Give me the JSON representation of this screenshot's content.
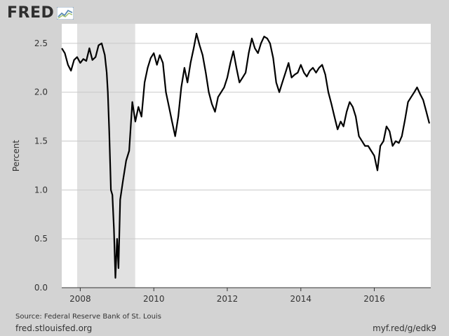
{
  "branding": {
    "logo_text": "FRED",
    "logo_icon": "fred-chart-icon"
  },
  "chart_data": {
    "type": "line",
    "ylabel": "Percent",
    "xlabel": "",
    "ylim": [
      0.0,
      2.7
    ],
    "xlim": [
      "2007-07-01",
      "2017-07-15"
    ],
    "yticks": [
      0.0,
      0.5,
      1.0,
      1.5,
      2.0,
      2.5
    ],
    "ytick_labels": [
      "0.0",
      "0.5",
      "1.0",
      "1.5",
      "2.0",
      "2.5"
    ],
    "xticks": [
      "2008-01-01",
      "2010-01-01",
      "2012-01-01",
      "2014-01-01",
      "2016-01-01"
    ],
    "xtick_labels": [
      "2008",
      "2010",
      "2012",
      "2014",
      "2016"
    ],
    "grid": true,
    "recession_shading": [
      {
        "start": "2007-12-01",
        "end": "2009-06-30"
      }
    ],
    "colors": {
      "line": "#000000",
      "recession": "#e1e1e1",
      "plot_bg": "#ffffff",
      "grid": "#c9c9c9"
    },
    "series": [
      {
        "x": [
          "2007-07-02",
          "2007-08-01",
          "2007-09-01",
          "2007-10-01",
          "2007-11-01",
          "2007-12-01",
          "2008-01-01",
          "2008-02-01",
          "2008-03-01",
          "2008-04-01",
          "2008-05-01",
          "2008-06-01",
          "2008-07-01",
          "2008-08-01",
          "2008-09-01",
          "2008-09-20",
          "2008-10-01",
          "2008-10-15",
          "2008-11-01",
          "2008-11-15",
          "2008-12-01",
          "2008-12-15",
          "2009-01-01",
          "2009-01-15",
          "2009-02-01",
          "2009-03-01",
          "2009-04-01",
          "2009-05-01",
          "2009-06-01",
          "2009-07-01",
          "2009-08-01",
          "2009-09-01",
          "2009-10-01",
          "2009-11-01",
          "2009-12-01",
          "2010-01-01",
          "2010-02-01",
          "2010-03-01",
          "2010-04-01",
          "2010-05-01",
          "2010-06-01",
          "2010-07-01",
          "2010-08-01",
          "2010-09-01",
          "2010-10-01",
          "2010-11-01",
          "2010-12-01",
          "2011-01-01",
          "2011-02-01",
          "2011-03-01",
          "2011-04-01",
          "2011-05-01",
          "2011-06-01",
          "2011-07-01",
          "2011-08-01",
          "2011-09-01",
          "2011-10-01",
          "2011-11-01",
          "2011-12-01",
          "2012-01-01",
          "2012-02-01",
          "2012-03-01",
          "2012-04-01",
          "2012-05-01",
          "2012-06-01",
          "2012-07-01",
          "2012-08-01",
          "2012-09-01",
          "2012-10-01",
          "2012-11-01",
          "2012-12-01",
          "2013-01-01",
          "2013-02-01",
          "2013-03-01",
          "2013-04-01",
          "2013-05-01",
          "2013-06-01",
          "2013-07-01",
          "2013-08-01",
          "2013-09-01",
          "2013-10-01",
          "2013-11-01",
          "2013-12-01",
          "2014-01-01",
          "2014-02-01",
          "2014-03-01",
          "2014-04-01",
          "2014-05-01",
          "2014-06-01",
          "2014-07-01",
          "2014-08-01",
          "2014-09-01",
          "2014-10-01",
          "2014-11-01",
          "2014-12-01",
          "2015-01-01",
          "2015-02-01",
          "2015-03-01",
          "2015-04-01",
          "2015-05-01",
          "2015-06-01",
          "2015-07-01",
          "2015-08-01",
          "2015-09-01",
          "2015-10-01",
          "2015-11-01",
          "2015-12-01",
          "2016-01-01",
          "2016-02-01",
          "2016-03-01",
          "2016-04-01",
          "2016-05-01",
          "2016-06-01",
          "2016-07-01",
          "2016-08-01",
          "2016-09-01",
          "2016-10-01",
          "2016-11-01",
          "2016-12-01",
          "2017-01-01",
          "2017-02-01",
          "2017-03-01",
          "2017-04-01",
          "2017-05-01",
          "2017-06-01",
          "2017-07-01"
        ],
        "values": [
          2.45,
          2.4,
          2.28,
          2.22,
          2.33,
          2.36,
          2.3,
          2.34,
          2.32,
          2.45,
          2.33,
          2.36,
          2.48,
          2.5,
          2.38,
          2.2,
          2.0,
          1.6,
          1.0,
          0.95,
          0.6,
          0.1,
          0.5,
          0.2,
          0.9,
          1.1,
          1.3,
          1.4,
          1.9,
          1.7,
          1.85,
          1.75,
          2.1,
          2.25,
          2.35,
          2.4,
          2.28,
          2.38,
          2.3,
          2.0,
          1.85,
          1.7,
          1.55,
          1.75,
          2.05,
          2.25,
          2.1,
          2.3,
          2.45,
          2.6,
          2.48,
          2.38,
          2.2,
          2.0,
          1.88,
          1.8,
          1.95,
          2.0,
          2.05,
          2.15,
          2.3,
          2.42,
          2.25,
          2.1,
          2.15,
          2.2,
          2.4,
          2.55,
          2.45,
          2.4,
          2.5,
          2.57,
          2.55,
          2.5,
          2.35,
          2.1,
          2.0,
          2.1,
          2.2,
          2.3,
          2.15,
          2.18,
          2.2,
          2.28,
          2.2,
          2.16,
          2.22,
          2.25,
          2.2,
          2.25,
          2.28,
          2.18,
          2.0,
          1.88,
          1.75,
          1.62,
          1.7,
          1.65,
          1.8,
          1.9,
          1.85,
          1.75,
          1.55,
          1.5,
          1.45,
          1.45,
          1.4,
          1.35,
          1.2,
          1.45,
          1.5,
          1.65,
          1.6,
          1.45,
          1.5,
          1.48,
          1.55,
          1.72,
          1.9,
          1.95,
          2.0,
          2.05,
          1.98,
          1.92,
          1.8,
          1.68
        ]
      }
    ]
  },
  "footer": {
    "source": "Source: Federal Reserve Bank of St. Louis",
    "left": "fred.stlouisfed.org",
    "right": "myf.red/g/edk9"
  }
}
